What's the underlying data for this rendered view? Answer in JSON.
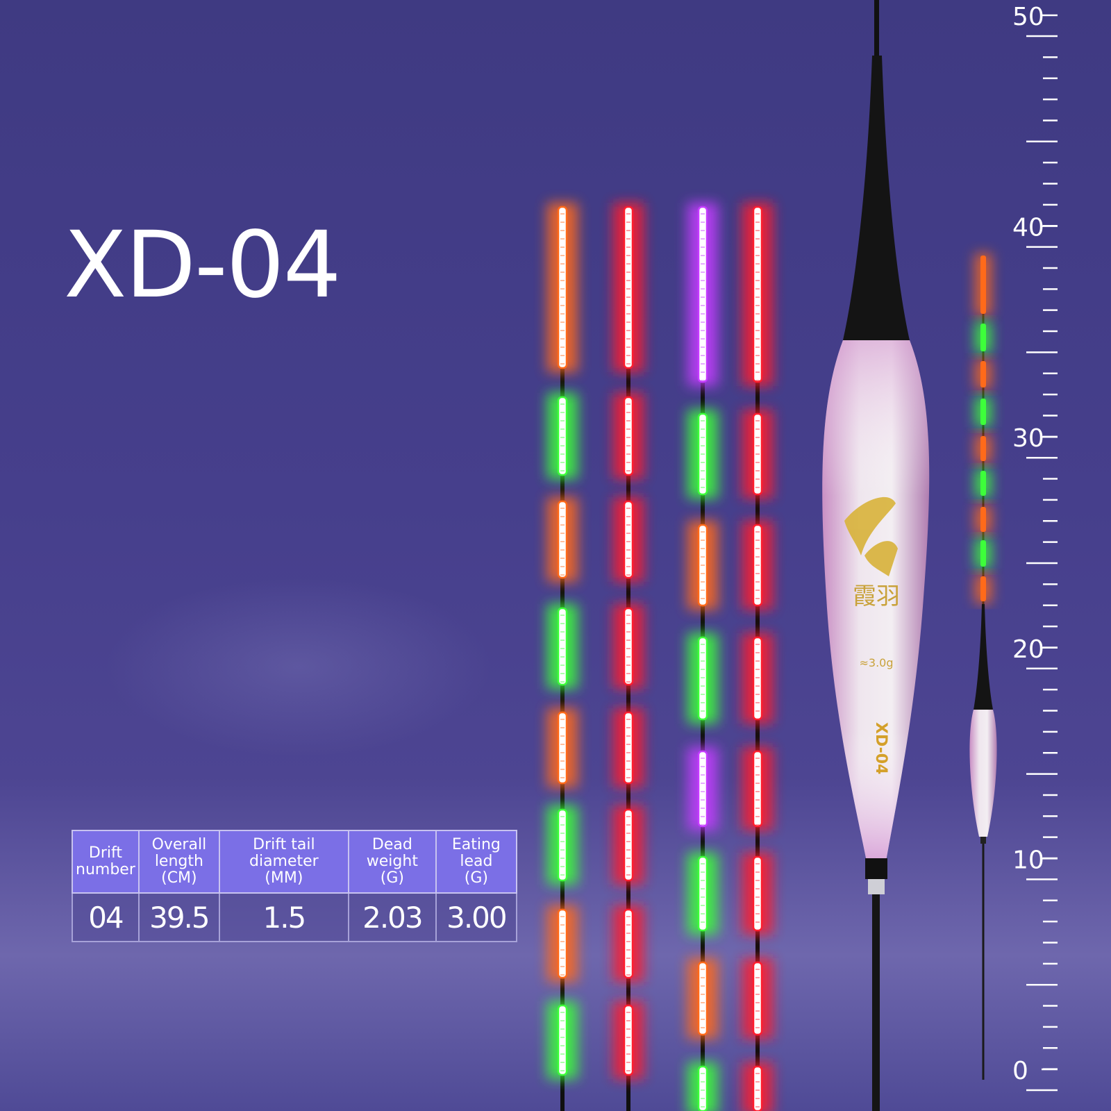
{
  "product": {
    "model_title": "XD-04"
  },
  "specs_table": {
    "headers": [
      [
        "Drift",
        "number"
      ],
      [
        "Overall",
        "length",
        "(CM)"
      ],
      [
        "Drift tail",
        "diameter",
        "(MM)"
      ],
      [
        "Dead",
        "weight",
        "(G)"
      ],
      [
        "Eating",
        "lead",
        "(G)"
      ]
    ],
    "values": [
      "04",
      "39.5",
      "1.5",
      "2.03",
      "3.00"
    ]
  },
  "ruler": {
    "labels": [
      "50",
      "40",
      "30",
      "20",
      "10",
      "0"
    ],
    "unit_max_cm": 50
  },
  "tail_variants": [
    {
      "colors": [
        "orange",
        "green",
        "orange",
        "green",
        "orange",
        "green",
        "orange",
        "green"
      ]
    },
    {
      "colors": [
        "red",
        "red",
        "red",
        "red",
        "red",
        "red",
        "red",
        "red"
      ]
    },
    {
      "colors": [
        "purple",
        "green",
        "orange",
        "green",
        "purple",
        "green",
        "orange",
        "green"
      ]
    },
    {
      "colors": [
        "red",
        "red",
        "red",
        "red",
        "red",
        "red",
        "red",
        "red"
      ]
    }
  ],
  "small_float_colors": [
    "orange",
    "green",
    "orange",
    "green",
    "orange",
    "green",
    "orange",
    "green",
    "orange"
  ],
  "palette": {
    "orange": "#ff6a1a",
    "green": "#3dff3a",
    "red": "#ff1e2e",
    "purple": "#c43cff",
    "background": "#443e8a",
    "table_header": "#7b6fe6"
  },
  "float_label": {
    "brand_chars": "霞羽",
    "weight": "≈3.0g",
    "model": "XD-04"
  }
}
